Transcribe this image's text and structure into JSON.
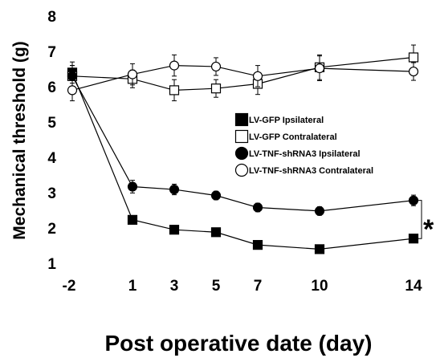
{
  "chart_data": {
    "type": "line",
    "title": "",
    "xlabel": "Post operative date (day)",
    "ylabel": "Mechanical threshold (g)",
    "x_categories": [
      "-2",
      "1",
      "3",
      "5",
      "7",
      "10",
      "14"
    ],
    "ylim": [
      1,
      8
    ],
    "y_ticks": [
      "1",
      "2",
      "3",
      "4",
      "5",
      "6",
      "7",
      "8"
    ],
    "grid": false,
    "legend_position": "center-right",
    "series": [
      {
        "name": "LV-GFP Ipsilateral",
        "marker": "filled-square",
        "values": [
          6.4,
          2.23,
          1.95,
          1.88,
          1.52,
          1.4,
          1.7
        ],
        "errors": [
          0.3,
          0.12,
          0.12,
          0.1,
          0.1,
          0.12,
          0.12
        ]
      },
      {
        "name": "LV-GFP Contralateral",
        "marker": "open-square",
        "values": [
          6.3,
          6.22,
          5.9,
          5.95,
          6.08,
          6.55,
          6.83
        ],
        "errors": [
          0.3,
          0.25,
          0.3,
          0.25,
          0.3,
          0.35,
          0.35
        ]
      },
      {
        "name": "LV-TNF-shRNA3 Ipsilateral",
        "marker": "filled-circle",
        "values": [
          6.3,
          3.17,
          3.09,
          2.92,
          2.58,
          2.48,
          2.78
        ],
        "errors": [
          0.3,
          0.18,
          0.15,
          0.12,
          0.12,
          0.12,
          0.15
        ]
      },
      {
        "name": "LV-TNF-shRNA3 Contralateral",
        "marker": "open-circle",
        "values": [
          5.9,
          6.35,
          6.6,
          6.57,
          6.3,
          6.52,
          6.43
        ],
        "errors": [
          0.3,
          0.3,
          0.3,
          0.25,
          0.3,
          0.35,
          0.25
        ]
      }
    ],
    "annotations": [
      {
        "text": "*",
        "between": [
          "LV-TNF-shRNA3 Ipsilateral",
          "LV-GFP Ipsilateral"
        ],
        "at_x": "14"
      }
    ],
    "colors": {
      "line": "#000000",
      "fill": "#000000",
      "open_fill": "#ffffff"
    }
  }
}
